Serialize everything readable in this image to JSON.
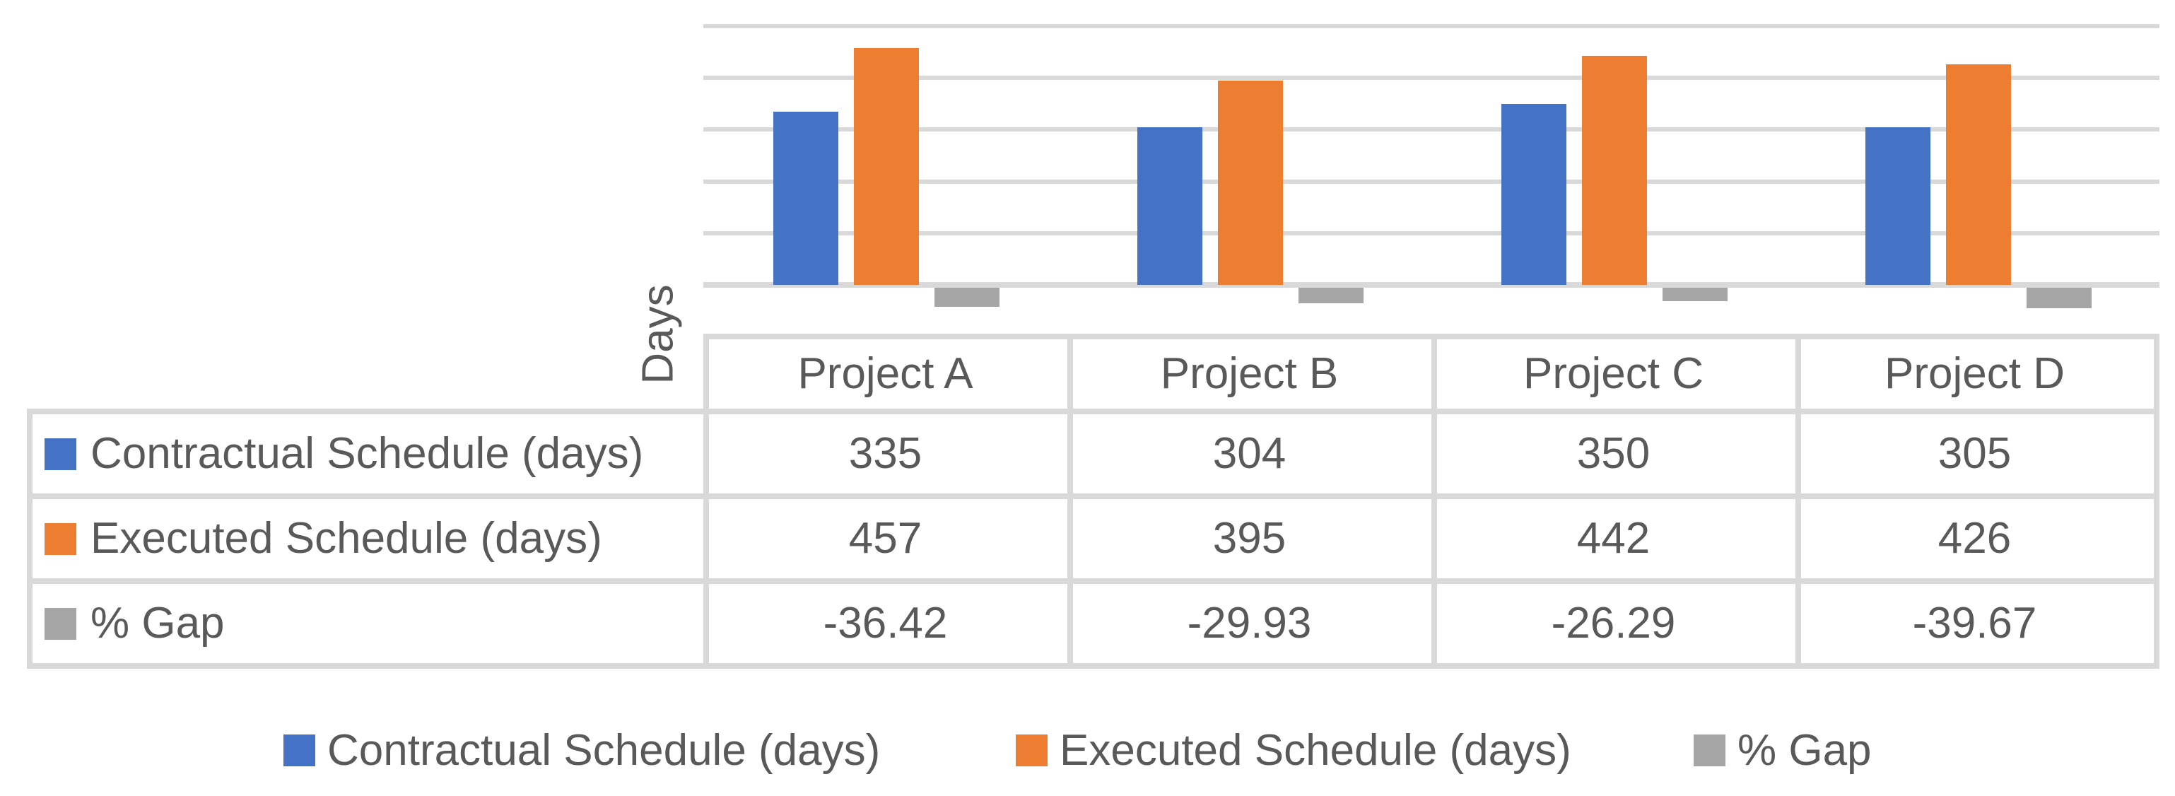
{
  "chart_data": {
    "type": "bar",
    "categories": [
      "Project A",
      "Project B",
      "Project C",
      "Project D"
    ],
    "series": [
      {
        "name": "Contractual Schedule (days)",
        "values": [
          335,
          304,
          350,
          305
        ],
        "color": "#4472C4"
      },
      {
        "name": "Executed Schedule (days)",
        "values": [
          457,
          395,
          442,
          426
        ],
        "color": "#ED7D31"
      },
      {
        "name": "% Gap",
        "values": [
          -36.42,
          -29.93,
          -26.29,
          -39.67
        ],
        "color": "#A5A5A5"
      }
    ],
    "title": "",
    "xlabel": "",
    "ylabel": "Days",
    "ylim": [
      -100,
      500
    ],
    "gridline_step": 100,
    "grid": true,
    "y_tick_labels_visible": false,
    "legend_position": "bottom",
    "data_table_shown": true
  },
  "table": {
    "column_headers": [
      "Project A",
      "Project B",
      "Project C",
      "Project D"
    ],
    "rows": [
      {
        "label": "Contractual Schedule (days)",
        "key_color": "#4472C4",
        "values": [
          "335",
          "304",
          "350",
          "305"
        ]
      },
      {
        "label": "Executed Schedule (days)",
        "key_color": "#ED7D31",
        "values": [
          "457",
          "395",
          "442",
          "426"
        ]
      },
      {
        "label": "% Gap",
        "key_color": "#A5A5A5",
        "values": [
          "-36.42",
          "-29.93",
          "-26.29",
          "-39.67"
        ]
      }
    ]
  },
  "legend": {
    "items": [
      {
        "label": "Contractual Schedule (days)",
        "color": "#4472C4"
      },
      {
        "label": "Executed Schedule (days)",
        "color": "#ED7D31"
      },
      {
        "label": "% Gap",
        "color": "#A5A5A5"
      }
    ]
  },
  "colors": {
    "gridline": "#D9D9D9",
    "table_border": "#D9D9D9",
    "text": "#595959",
    "background": "#FFFFFF"
  }
}
